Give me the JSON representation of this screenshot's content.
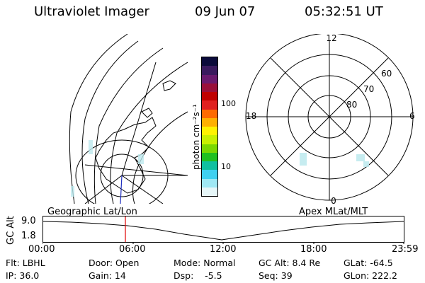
{
  "header": {
    "instrument": "Ultraviolet Imager",
    "date": "09 Jun 07",
    "time": "05:32:51 UT"
  },
  "colorbar": {
    "unit_label": "photon cm⁻²s⁻¹",
    "ticks": [
      "100",
      "10"
    ],
    "colors": [
      "#0b0b3a",
      "#3a1a5e",
      "#6a1a6e",
      "#9a0f3a",
      "#c00000",
      "#e02020",
      "#ff6a00",
      "#ffb000",
      "#fff200",
      "#c8f000",
      "#7ad800",
      "#20c020",
      "#10c0a0",
      "#40d0f0",
      "#9fe8f4",
      "#e6f6f8"
    ]
  },
  "polar_plot": {
    "labels": {
      "top": "12",
      "left": "18",
      "right": "6",
      "bottom": "0"
    },
    "lat_labels": [
      "60",
      "70",
      "80"
    ]
  },
  "timeline": {
    "ylabel": "GC Alt",
    "y_ticks": [
      "9.0",
      "1.8"
    ],
    "left_title": "Geographic Lat/Lon",
    "right_title": "Apex MLat/MLT",
    "x_ticks": [
      "00:00",
      "06:00",
      "12:00",
      "18:00",
      "23:59"
    ]
  },
  "status": {
    "flt": "Flt: LBHL",
    "ip": "IP: 36.0",
    "door": "Door: Open",
    "gain": "Gain: 14",
    "mode": "Mode: Normal",
    "dsp": "Dsp:    -5.5",
    "gcalt": "GC Alt: 8.4 Re",
    "seq": "Seq: 39",
    "glat": "GLat: -64.5",
    "glon": "GLon: 222.2"
  }
}
